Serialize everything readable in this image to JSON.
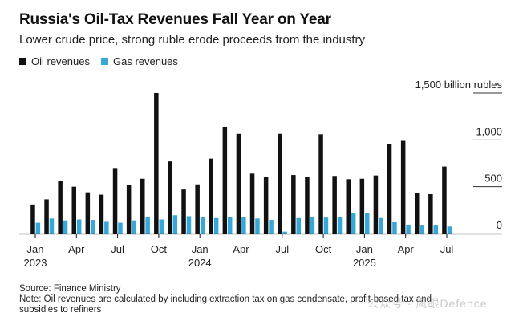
{
  "title": "Russia's Oil-Tax Revenues Fall Year on Year",
  "subtitle": "Lower crude price, strong ruble erode proceeds from the industry",
  "legend": {
    "oil_label": "Oil revenues",
    "gas_label": "Gas revenues"
  },
  "colors": {
    "oil": "#111111",
    "gas": "#35a7d9",
    "grid": "#333333",
    "axis": "#111111"
  },
  "footer": {
    "source": "Source: Finance Ministry",
    "note_line1": "Note: Oil revenues are calculated by including extraction tax on gas condensate, profit-based tax and",
    "note_line2": "subsidies to refiners"
  },
  "watermark": "公众号 · 鹰眼Defence",
  "chart_data": {
    "type": "bar",
    "ylim": [
      0,
      1500
    ],
    "yticks": [
      0,
      500,
      1000,
      1500
    ],
    "ytick_labels": [
      "0",
      "500",
      "1,000",
      "1,500 billion rubles"
    ],
    "categories": [
      "Jan 2023",
      "Feb 2023",
      "Mar 2023",
      "Apr 2023",
      "May 2023",
      "Jun 2023",
      "Jul 2023",
      "Aug 2023",
      "Sep 2023",
      "Oct 2023",
      "Nov 2023",
      "Dec 2023",
      "Jan 2024",
      "Feb 2024",
      "Mar 2024",
      "Apr 2024",
      "May 2024",
      "Jun 2024",
      "Jul 2024",
      "Aug 2024",
      "Sep 2024",
      "Oct 2024",
      "Nov 2024",
      "Dec 2024",
      "Jan 2025",
      "Feb 2025",
      "Mar 2025",
      "Apr 2025",
      "May 2025",
      "Jun 2025",
      "Jul 2025"
    ],
    "xtick_labels": [
      {
        "index": 0,
        "month": "Jan",
        "year": "2023"
      },
      {
        "index": 3,
        "month": "Apr",
        "year": ""
      },
      {
        "index": 6,
        "month": "Jul",
        "year": ""
      },
      {
        "index": 9,
        "month": "Oct",
        "year": ""
      },
      {
        "index": 12,
        "month": "Jan",
        "year": "2024"
      },
      {
        "index": 15,
        "month": "Apr",
        "year": ""
      },
      {
        "index": 18,
        "month": "Jul",
        "year": ""
      },
      {
        "index": 21,
        "month": "Oct",
        "year": ""
      },
      {
        "index": 24,
        "month": "Jan",
        "year": "2025"
      },
      {
        "index": 27,
        "month": "Apr",
        "year": ""
      },
      {
        "index": 30,
        "month": "Jul",
        "year": ""
      }
    ],
    "series": [
      {
        "name": "Oil revenues",
        "values": [
          310,
          365,
          560,
          500,
          440,
          415,
          700,
          520,
          585,
          1500,
          770,
          470,
          525,
          800,
          1140,
          1065,
          640,
          600,
          1065,
          625,
          605,
          1060,
          615,
          580,
          585,
          620,
          960,
          990,
          435,
          420,
          715
        ]
      },
      {
        "name": "Gas revenues",
        "values": [
          115,
          160,
          140,
          150,
          145,
          125,
          115,
          140,
          175,
          150,
          195,
          185,
          175,
          165,
          180,
          175,
          160,
          145,
          20,
          165,
          180,
          170,
          180,
          220,
          215,
          165,
          120,
          95,
          85,
          85,
          75
        ]
      }
    ]
  }
}
